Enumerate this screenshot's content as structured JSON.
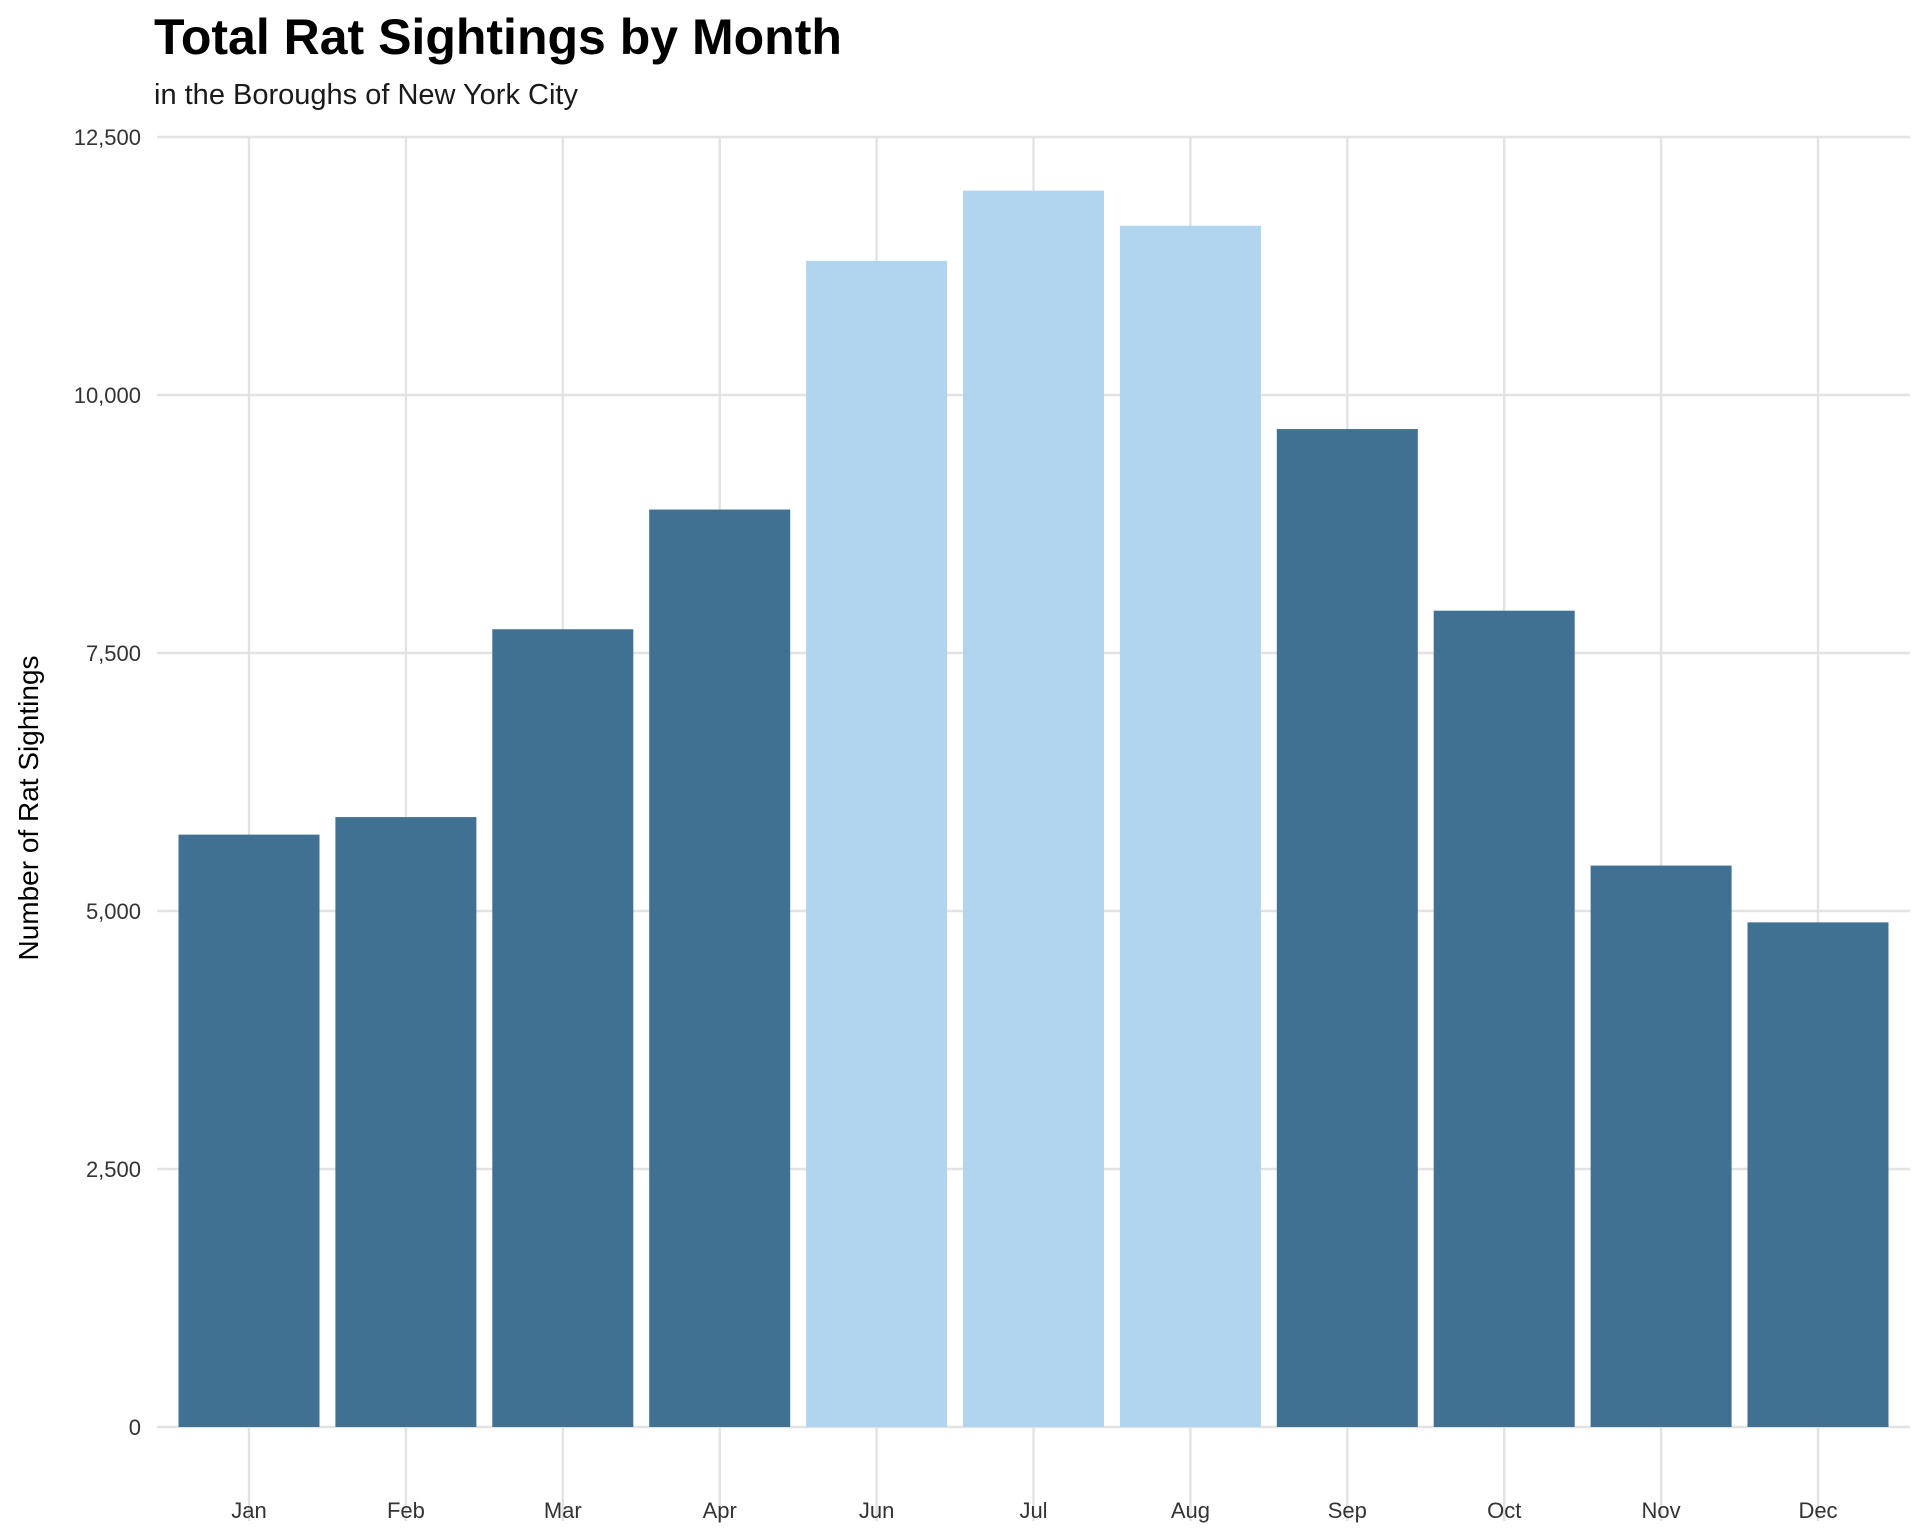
{
  "chart_data": {
    "type": "bar",
    "title": "Total Rat Sightings by Month",
    "subtitle": "in the Boroughs of New York City",
    "xlabel": "",
    "ylabel": "Number of Rat Sightings",
    "categories": [
      "Jan",
      "Feb",
      "Mar",
      "Apr",
      "Jun",
      "Jul",
      "Aug",
      "Sep",
      "Oct",
      "Nov",
      "Dec"
    ],
    "values": [
      5740,
      5910,
      7730,
      8890,
      11300,
      11980,
      11640,
      9670,
      7910,
      5440,
      4890
    ],
    "highlight": [
      false,
      false,
      false,
      false,
      true,
      true,
      true,
      false,
      false,
      false,
      false
    ],
    "ylim": [
      0,
      12500
    ],
    "yticks": [
      0,
      2500,
      5000,
      7500,
      10000,
      12500
    ],
    "ytick_labels": [
      "0",
      "2,500",
      "5,000",
      "7,500",
      "10,000",
      "12,500"
    ],
    "colors": {
      "default": "#417192",
      "highlight": "#b1d5ee"
    },
    "grid": true,
    "legend": "none"
  }
}
